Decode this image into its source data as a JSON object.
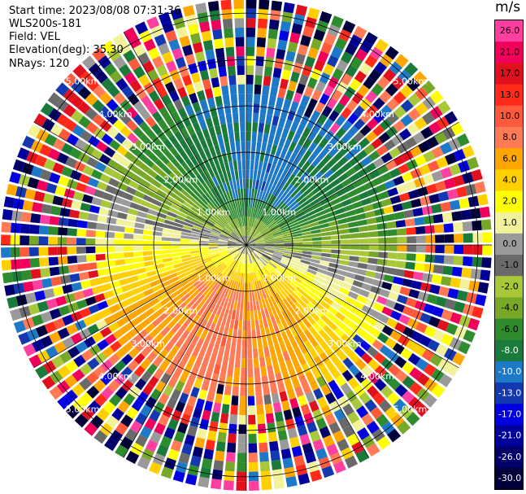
{
  "header": {
    "start_time": "Start time: 2023/08/08 07:31:36",
    "site": "WLS200s-181",
    "field": "Field: VEL",
    "elevation": "Elevation(deg): 35.30",
    "nrays": "NRays: 120"
  },
  "colorbar": {
    "title": "m/s",
    "ticks": [
      "26.0",
      "21.0",
      "17.0",
      "13.0",
      "10.0",
      "8.0",
      "6.0",
      "4.0",
      "2.0",
      "1.0",
      "0.0",
      "-1.0",
      "-2.0",
      "-4.0",
      "-6.0",
      "-8.0",
      "-10.0",
      "-13.0",
      "-17.0",
      "-21.0",
      "-26.0",
      "-30.0"
    ],
    "colors": [
      "#ff3fa0",
      "#f0005a",
      "#e0101e",
      "#ff2a1a",
      "#ff5a3c",
      "#ff7a55",
      "#ffa600",
      "#ffcf00",
      "#ffff00",
      "#f2f29a",
      "#9a9a9a",
      "#6a6a6a",
      "#a8c83a",
      "#78a828",
      "#2e8b2e",
      "#1a7a3a",
      "#1e78c8",
      "#1438b0",
      "#0000e0",
      "#00009a",
      "#000068",
      "#00003a"
    ]
  },
  "chart_data": {
    "type": "heatmap",
    "title": "",
    "rings_km": [
      1,
      2,
      3,
      4,
      5
    ],
    "ring_labels": [
      "1.00km",
      "2.00km",
      "3.00km",
      "4.00km",
      "5.00km"
    ],
    "nrays": 120,
    "max_range_km": 5.3,
    "units": "m/s"
  }
}
